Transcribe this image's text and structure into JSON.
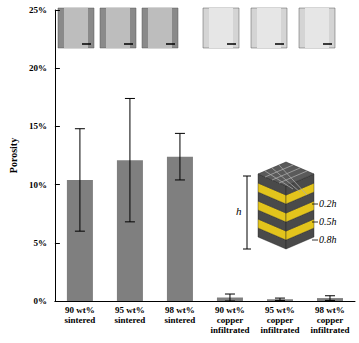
{
  "chart_data": {
    "type": "bar",
    "y_label": "Porosity",
    "categories": [
      "90 wt%\nsintered",
      "95 wt%\nsintered",
      "98 wt%\nsintered",
      "90 wt%\ncopper\ninfiltrated",
      "95 wt%\ncopper\ninfiltrated",
      "98 wt%\ncopper\ninfiltrated"
    ],
    "values": [
      10.4,
      12.1,
      12.4,
      0.3,
      0.15,
      0.25
    ],
    "errors": [
      4.4,
      5.3,
      2.0,
      0.3,
      0.1,
      0.2
    ],
    "color": "#7f7f7f",
    "ylim": [
      0,
      25
    ],
    "yticks": [
      {
        "value": 0,
        "label": "0%"
      },
      {
        "value": 5,
        "label": "5%"
      },
      {
        "value": 10,
        "label": "10%"
      },
      {
        "value": 15,
        "label": "15%"
      },
      {
        "value": 20,
        "label": "20%"
      },
      {
        "value": 25,
        "label": "25%"
      }
    ],
    "grid": false,
    "annotations": [
      "h",
      "0.2h",
      "0.5h",
      "0.8h"
    ]
  }
}
